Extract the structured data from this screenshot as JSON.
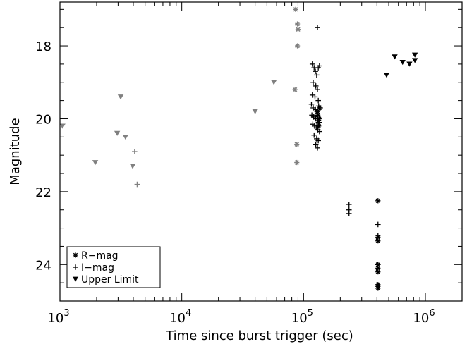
{
  "chart_data": {
    "type": "scatter",
    "title": "",
    "xlabel": "Time since burst trigger (sec)",
    "ylabel": "Magnitude",
    "xscale": "log",
    "xlim": [
      1000,
      2000000
    ],
    "ylim": [
      25.0,
      16.8
    ],
    "y_inverted": true,
    "grid": false,
    "legend_position": "bottom-left",
    "x_ticks": [
      {
        "value": 1000,
        "base": "10",
        "exp": "3"
      },
      {
        "value": 10000,
        "base": "10",
        "exp": "4"
      },
      {
        "value": 100000,
        "base": "10",
        "exp": "5"
      },
      {
        "value": 1000000,
        "base": "10",
        "exp": "6"
      }
    ],
    "y_ticks": [
      "18",
      "20",
      "22",
      "24"
    ],
    "y_tick_values": [
      18,
      20,
      22,
      24
    ],
    "series": [
      {
        "name": "R−mag",
        "marker": "asterisk",
        "color": "#000000",
        "points": [
          [
            408000,
            22.25
          ],
          [
            408000,
            23.25
          ],
          [
            408000,
            23.35
          ],
          [
            408000,
            24.0
          ],
          [
            408000,
            24.1
          ],
          [
            408000,
            24.2
          ],
          [
            408000,
            24.55
          ],
          [
            408000,
            24.6
          ],
          [
            408000,
            24.65
          ],
          [
            130000,
            19.8
          ],
          [
            131000,
            19.9
          ],
          [
            132000,
            20.1
          ],
          [
            133000,
            20.2
          ],
          [
            134000,
            20.0
          ],
          [
            135000,
            19.7
          ]
        ]
      },
      {
        "name": "R−mag (grey)",
        "marker": "asterisk",
        "color": "#808080",
        "points": [
          [
            86000,
            17.0
          ],
          [
            89000,
            17.4
          ],
          [
            90000,
            17.55
          ],
          [
            89000,
            18.0
          ],
          [
            85000,
            19.2
          ],
          [
            88000,
            20.7
          ],
          [
            88000,
            21.2
          ]
        ]
      },
      {
        "name": "I−mag",
        "marker": "plus",
        "color": "#000000",
        "points": [
          [
            130000,
            17.5
          ],
          [
            118000,
            18.5
          ],
          [
            122000,
            18.6
          ],
          [
            125000,
            18.7
          ],
          [
            128000,
            18.8
          ],
          [
            132000,
            18.6
          ],
          [
            135000,
            18.55
          ],
          [
            120000,
            19.0
          ],
          [
            126000,
            19.1
          ],
          [
            130000,
            19.2
          ],
          [
            118000,
            19.35
          ],
          [
            124000,
            19.4
          ],
          [
            132000,
            19.5
          ],
          [
            116000,
            19.6
          ],
          [
            120000,
            19.7
          ],
          [
            125000,
            19.75
          ],
          [
            129000,
            19.8
          ],
          [
            133000,
            19.65
          ],
          [
            137000,
            19.7
          ],
          [
            117000,
            19.9
          ],
          [
            121000,
            19.95
          ],
          [
            126000,
            20.0
          ],
          [
            130000,
            20.05
          ],
          [
            134000,
            20.1
          ],
          [
            119000,
            20.15
          ],
          [
            123000,
            20.2
          ],
          [
            127000,
            20.25
          ],
          [
            131000,
            20.3
          ],
          [
            135000,
            20.35
          ],
          [
            122000,
            20.45
          ],
          [
            128000,
            20.55
          ],
          [
            132000,
            20.6
          ],
          [
            126000,
            20.7
          ],
          [
            130000,
            20.8
          ],
          [
            236000,
            22.35
          ],
          [
            236000,
            22.5
          ],
          [
            236000,
            22.6
          ],
          [
            408000,
            22.9
          ],
          [
            408000,
            23.2
          ],
          [
            408000,
            24.0
          ]
        ]
      },
      {
        "name": "I−mag (grey)",
        "marker": "plus",
        "color": "#808080",
        "points": [
          [
            4100,
            20.9
          ],
          [
            4300,
            21.8
          ]
        ]
      },
      {
        "name": "Upper Limit",
        "marker": "triangle-down",
        "color": "#000000",
        "points": [
          [
            480000,
            18.8
          ],
          [
            560000,
            18.3
          ],
          [
            650000,
            18.45
          ],
          [
            740000,
            18.5
          ],
          [
            820000,
            18.4
          ],
          [
            820000,
            18.25
          ]
        ]
      },
      {
        "name": "Upper Limit (grey)",
        "marker": "triangle-down",
        "color": "#808080",
        "points": [
          [
            1050,
            20.2
          ],
          [
            1950,
            21.2
          ],
          [
            2950,
            20.4
          ],
          [
            3150,
            19.4
          ],
          [
            3450,
            20.5
          ],
          [
            3950,
            21.3
          ],
          [
            40000,
            19.8
          ],
          [
            57000,
            19.0
          ]
        ]
      }
    ],
    "legend": [
      {
        "label": "R−mag",
        "marker": "asterisk"
      },
      {
        "label": "I−mag",
        "marker": "plus"
      },
      {
        "label": "Upper Limit",
        "marker": "triangle-down"
      }
    ]
  }
}
